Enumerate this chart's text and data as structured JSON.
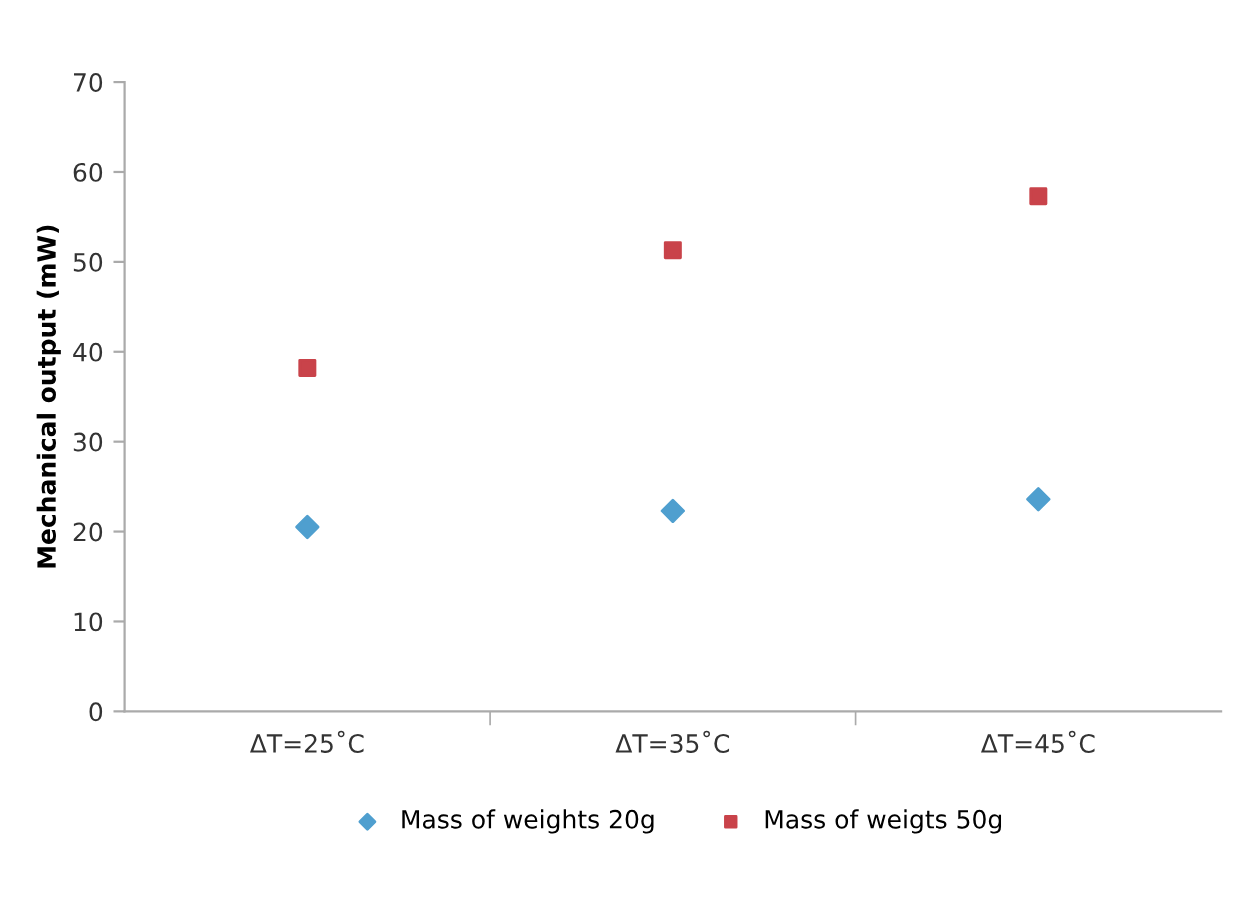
{
  "chart_data": {
    "type": "scatter",
    "ylabel": "Mechanical output (mW)",
    "categories": [
      "ΔT=25˚C",
      "ΔT=35˚C",
      "ΔT=45˚C"
    ],
    "series": [
      {
        "name": "Mass of weights 20g",
        "color": "#4f9fcf",
        "marker": "diamond",
        "values": [
          20.5,
          22.3,
          23.6
        ]
      },
      {
        "name": "Mass of weigts 50g",
        "color": "#c9434a",
        "marker": "square",
        "values": [
          38.2,
          51.3,
          57.3
        ]
      }
    ],
    "ylim": [
      0,
      70
    ],
    "yticks": [
      0,
      10,
      20,
      30,
      40,
      50,
      60,
      70
    ],
    "grid": false,
    "legend": "bottom"
  }
}
